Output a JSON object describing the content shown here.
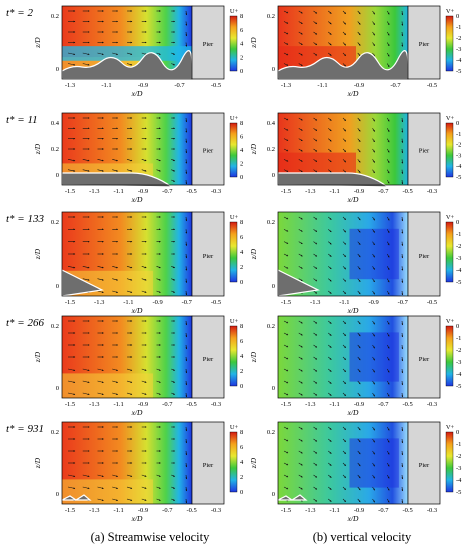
{
  "figure": {
    "time_labels": [
      "t* = 2",
      "t* = 11",
      "t* = 133",
      "t* = 266",
      "t* = 931"
    ],
    "pier_label": "Pier",
    "x_axis_label": "x/D",
    "y_axis_label": "z/D",
    "captions": {
      "a": "(a) Streamwise velocity",
      "b": "(b) vertical velocity"
    },
    "rows": [
      {
        "time": "t* = 2",
        "x_ticks": [
          "-1.3",
          "-1.1",
          "-0.9",
          "-0.7",
          "-0.5"
        ],
        "y_ticks": [
          "0.2",
          "0"
        ],
        "u_colorbar": {
          "title": "U+",
          "ticks": [
            "8",
            "6",
            "4",
            "2",
            "0"
          ]
        },
        "w_colorbar": {
          "title": "V+",
          "ticks": [
            "0",
            "-1",
            "-2",
            "-3",
            "-4",
            "-5"
          ]
        }
      },
      {
        "time": "t* = 11",
        "x_ticks": [
          "-1.5",
          "-1.3",
          "-1.1",
          "-0.9",
          "-0.7",
          "-0.5",
          "-0.3"
        ],
        "y_ticks": [
          "0.4",
          "0.2",
          "0"
        ],
        "u_colorbar": {
          "title": "U+",
          "ticks": [
            "8",
            "6",
            "4",
            "2",
            "0"
          ]
        },
        "w_colorbar": {
          "title": "V+",
          "ticks": [
            "0",
            "-1",
            "-2",
            "-3",
            "-4",
            "-5"
          ]
        }
      },
      {
        "time": "t* = 133",
        "x_ticks": [
          "-1.5",
          "-1.3",
          "-1.1",
          "-0.9",
          "-0.7",
          "-0.5"
        ],
        "y_ticks": [
          "0.2",
          "0"
        ],
        "u_colorbar": {
          "title": "U+",
          "ticks": [
            "8",
            "6",
            "4",
            "2",
            "0"
          ]
        },
        "w_colorbar": {
          "title": "V+",
          "ticks": [
            "0",
            "-1",
            "-2",
            "-3",
            "-4",
            "-5"
          ]
        }
      },
      {
        "time": "t* = 266",
        "x_ticks": [
          "-1.5",
          "-1.3",
          "-1.1",
          "-0.9",
          "-0.7",
          "-0.5",
          "-0.3"
        ],
        "y_ticks": [
          "0.2",
          "0"
        ],
        "u_colorbar": {
          "title": "U+",
          "ticks": [
            "8",
            "6",
            "4",
            "2",
            "0"
          ]
        },
        "w_colorbar": {
          "title": "V+",
          "ticks": [
            "0",
            "-1",
            "-2",
            "-3",
            "-4",
            "-5"
          ]
        }
      },
      {
        "time": "t* = 931",
        "x_ticks": [
          "-1.5",
          "-1.3",
          "-1.1",
          "-0.9",
          "-0.7",
          "-0.5",
          "-0.3"
        ],
        "y_ticks": [
          "0.2",
          "0"
        ],
        "u_colorbar": {
          "title": "U+",
          "ticks": [
            "8",
            "6",
            "4",
            "2",
            "0"
          ]
        },
        "w_colorbar": {
          "title": "V+",
          "ticks": [
            "0",
            "-1",
            "-2",
            "-3",
            "-4",
            "-5"
          ]
        }
      }
    ],
    "colors": {
      "bed": "#6e6e6e",
      "pier": "#d6d6d6",
      "cmap_high": "#e8231a",
      "cmap_mid": "#3cc83c",
      "cmap_low": "#1f35e0"
    }
  }
}
